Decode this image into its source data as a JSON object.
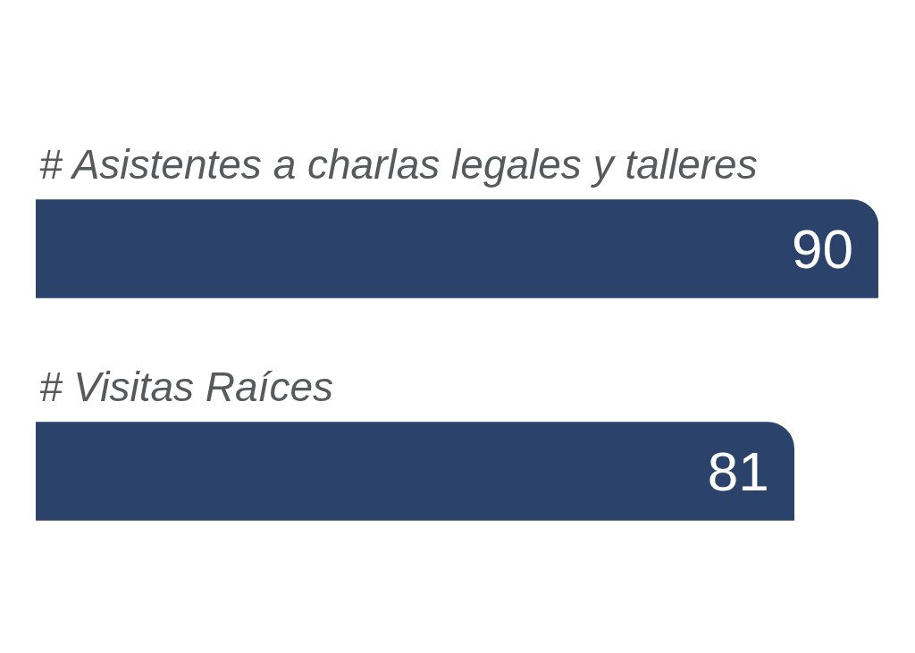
{
  "chart_data": {
    "type": "bar",
    "orientation": "horizontal",
    "categories": [
      "# Asistentes a charlas legales y talleres",
      "# Visitas Raíces"
    ],
    "values": [
      90,
      81
    ],
    "color": "#2b426b",
    "data_labels": true
  }
}
